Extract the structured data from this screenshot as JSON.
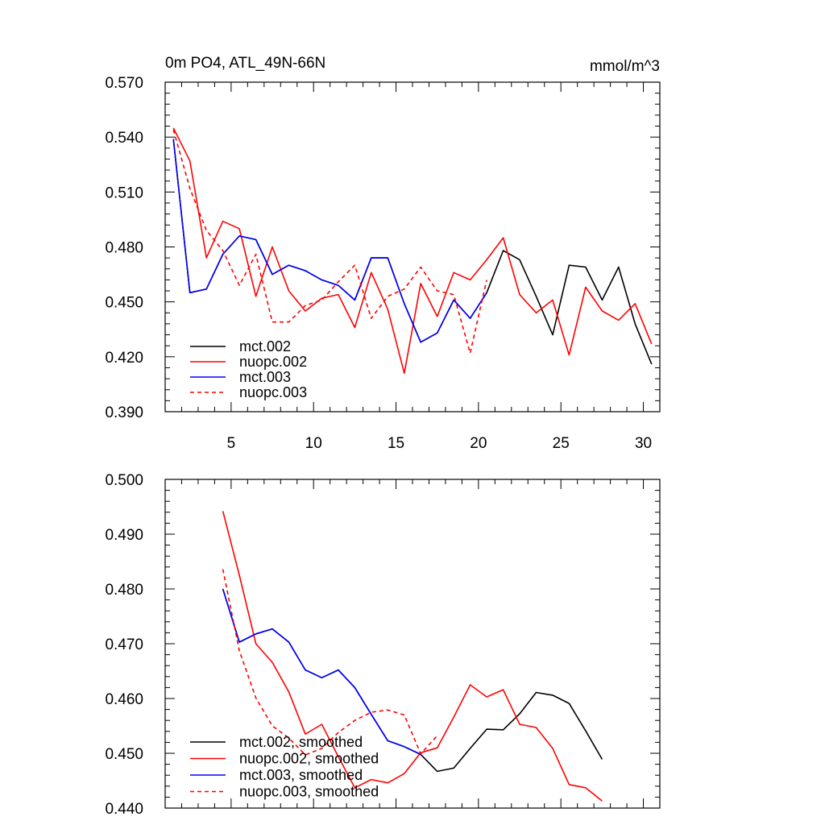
{
  "chart_data": [
    {
      "type": "line",
      "title": "0m PO4, ATL_49N-66N",
      "units": "mmol/m^3",
      "xlabel": "",
      "ylabel": "",
      "xlim": [
        1,
        31
      ],
      "ylim": [
        0.39,
        0.57
      ],
      "xticks": [
        5,
        10,
        15,
        20,
        25,
        30
      ],
      "yticks": [
        0.39,
        0.42,
        0.45,
        0.48,
        0.51,
        0.54,
        0.57
      ],
      "ytick_labels": [
        "0.390",
        "0.420",
        "0.450",
        "0.480",
        "0.510",
        "0.540",
        "0.570"
      ],
      "legend_position": "bottom-left",
      "series": [
        {
          "name": "mct.002",
          "color": "#000000",
          "dash": "solid",
          "x": [
            1.5,
            2.5,
            3.5,
            4.5,
            5.5,
            6.5,
            7.5,
            8.5,
            9.5,
            10.5,
            11.5,
            12.5,
            13.5,
            14.5,
            15.5,
            16.5,
            17.5,
            18.5,
            19.5,
            20.5,
            21.5,
            22.5,
            23.5,
            24.5,
            25.5,
            26.5,
            27.5,
            28.5,
            29.5,
            30.5
          ],
          "y": [
            0.539,
            0.455,
            0.457,
            0.476,
            0.486,
            0.484,
            0.465,
            0.47,
            0.467,
            0.462,
            0.459,
            0.451,
            0.474,
            0.474,
            0.449,
            0.428,
            0.433,
            0.451,
            0.441,
            0.455,
            0.478,
            0.473,
            0.453,
            0.432,
            0.47,
            0.469,
            0.451,
            0.469,
            0.438,
            0.416
          ]
        },
        {
          "name": "nuopc.002",
          "color": "#ff0000",
          "dash": "solid",
          "x": [
            1.5,
            2.5,
            3.5,
            4.5,
            5.5,
            6.5,
            7.5,
            8.5,
            9.5,
            10.5,
            11.5,
            12.5,
            13.5,
            14.5,
            15.5,
            16.5,
            17.5,
            18.5,
            19.5,
            20.5,
            21.5,
            22.5,
            23.5,
            24.5,
            25.5,
            26.5,
            27.5,
            28.5,
            29.5,
            30.5
          ],
          "y": [
            0.545,
            0.527,
            0.474,
            0.494,
            0.49,
            0.453,
            0.48,
            0.456,
            0.445,
            0.452,
            0.454,
            0.436,
            0.466,
            0.446,
            0.411,
            0.46,
            0.442,
            0.466,
            0.462,
            0.473,
            0.485,
            0.454,
            0.444,
            0.451,
            0.421,
            0.458,
            0.445,
            0.44,
            0.449,
            0.427
          ]
        },
        {
          "name": "mct.003",
          "color": "#0000ff",
          "dash": "solid",
          "x": [
            1.5,
            2.5,
            3.5,
            4.5,
            5.5,
            6.5,
            7.5,
            8.5,
            9.5,
            10.5,
            11.5,
            12.5,
            13.5,
            14.5,
            15.5,
            16.5,
            17.5,
            18.5,
            19.5,
            20.5
          ],
          "y": [
            0.539,
            0.455,
            0.457,
            0.476,
            0.486,
            0.484,
            0.465,
            0.47,
            0.467,
            0.462,
            0.459,
            0.451,
            0.474,
            0.474,
            0.449,
            0.428,
            0.433,
            0.451,
            0.441,
            0.455
          ]
        },
        {
          "name": "nuopc.003",
          "color": "#ff0000",
          "dash": "dashed",
          "x": [
            1.5,
            2.5,
            3.5,
            4.5,
            5.5,
            6.5,
            7.5,
            8.5,
            9.5,
            10.5,
            11.5,
            12.5,
            13.5,
            14.5,
            15.5,
            16.5,
            17.5,
            18.5,
            19.5,
            20.5
          ],
          "y": [
            0.544,
            0.512,
            0.489,
            0.478,
            0.459,
            0.476,
            0.439,
            0.439,
            0.448,
            0.451,
            0.461,
            0.47,
            0.441,
            0.453,
            0.457,
            0.469,
            0.456,
            0.454,
            0.422,
            0.462
          ]
        }
      ]
    },
    {
      "type": "line",
      "title": "",
      "xlabel": "",
      "ylabel": "",
      "xlim": [
        1,
        31
      ],
      "ylim": [
        0.44,
        0.5
      ],
      "xticks": [
        5,
        10,
        15,
        20,
        25,
        30
      ],
      "yticks": [
        0.44,
        0.45,
        0.46,
        0.47,
        0.48,
        0.49,
        0.5
      ],
      "ytick_labels": [
        "0.440",
        "0.450",
        "0.460",
        "0.470",
        "0.480",
        "0.490",
        "0.500"
      ],
      "legend_position": "bottom-left",
      "series": [
        {
          "name": "mct.002, smoothed",
          "color": "#000000",
          "dash": "solid",
          "x": [
            4.5,
            5.5,
            6.5,
            7.5,
            8.5,
            9.5,
            10.5,
            11.5,
            12.5,
            13.5,
            14.5,
            15.5,
            16.5,
            17.5,
            18.5,
            19.5,
            20.5,
            21.5,
            22.5,
            23.5,
            24.5,
            25.5,
            26.5,
            27.5
          ],
          "y": [
            0.48,
            0.4703,
            0.4718,
            0.4727,
            0.4703,
            0.4652,
            0.4638,
            0.4652,
            0.462,
            0.4571,
            0.4523,
            0.4512,
            0.4498,
            0.4467,
            0.4473,
            0.4509,
            0.4544,
            0.4543,
            0.4572,
            0.4611,
            0.4606,
            0.4591,
            0.4541,
            0.4489
          ]
        },
        {
          "name": "nuopc.002, smoothed",
          "color": "#ff0000",
          "dash": "solid",
          "x": [
            4.5,
            5.5,
            6.5,
            7.5,
            8.5,
            9.5,
            10.5,
            11.5,
            12.5,
            13.5,
            14.5,
            15.5,
            16.5,
            17.5,
            18.5,
            19.5,
            20.5,
            21.5,
            22.5,
            23.5,
            24.5,
            25.5,
            26.5,
            27.5
          ],
          "y": [
            0.4942,
            0.4825,
            0.47,
            0.4666,
            0.4612,
            0.4535,
            0.4553,
            0.4494,
            0.4437,
            0.4452,
            0.4446,
            0.4463,
            0.4501,
            0.451,
            0.4566,
            0.4625,
            0.4603,
            0.4616,
            0.4553,
            0.4547,
            0.4509,
            0.4443,
            0.4437,
            0.4413
          ]
        },
        {
          "name": "mct.003, smoothed",
          "color": "#0000ff",
          "dash": "solid",
          "x": [
            4.5,
            5.5,
            6.5,
            7.5,
            8.5,
            9.5,
            10.5,
            11.5,
            12.5,
            13.5,
            14.5,
            15.5,
            16.5
          ],
          "y": [
            0.48,
            0.4703,
            0.4718,
            0.4727,
            0.4703,
            0.4652,
            0.4638,
            0.4652,
            0.462,
            0.4571,
            0.4523,
            0.4512,
            0.4498
          ]
        },
        {
          "name": "nuopc.003, smoothed",
          "color": "#ff0000",
          "dash": "dashed",
          "x": [
            4.5,
            5.5,
            6.5,
            7.5,
            8.5,
            9.5,
            10.5,
            11.5,
            12.5,
            13.5,
            14.5,
            15.5,
            16.5,
            17.5
          ],
          "y": [
            0.4836,
            0.4687,
            0.4601,
            0.455,
            0.4528,
            0.4497,
            0.4509,
            0.4538,
            0.456,
            0.4575,
            0.4579,
            0.457,
            0.4499,
            0.4532
          ]
        }
      ]
    }
  ]
}
